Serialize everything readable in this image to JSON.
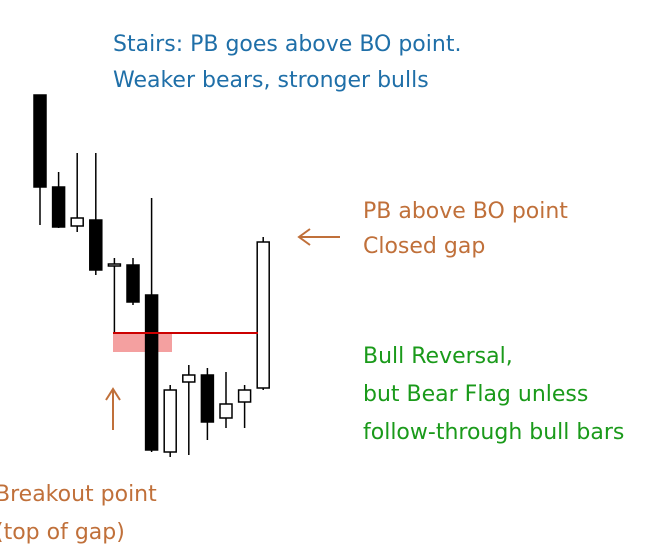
{
  "chart_data": {
    "type": "candlestick",
    "annotations": {
      "title_lines": [
        "Stairs: PB goes above BO point.",
        "Weaker bears, stronger bulls"
      ],
      "pb_lines": [
        "PB above BO point",
        "Closed gap"
      ],
      "reversal_lines": [
        "Bull Reversal,",
        "but Bear Flag unless",
        "follow-through bull bars"
      ],
      "breakout_lines": [
        "Breakout point",
        "(top of gap)"
      ]
    },
    "open": [
      461,
      369,
      330,
      336,
      290,
      291,
      261,
      104,
      174,
      181,
      138,
      154,
      168
    ],
    "high": [
      461,
      384,
      403,
      403,
      298,
      298,
      358,
      171,
      191,
      188,
      184,
      171,
      319
    ],
    "low": [
      331,
      328,
      324,
      281,
      223,
      251,
      104,
      99,
      101,
      116,
      128,
      128,
      166
    ],
    "close": [
      369,
      329,
      338,
      286,
      292,
      254,
      106,
      166,
      181,
      134,
      152,
      166,
      314
    ],
    "breakout_level": 223,
    "gap_zone": [
      204,
      223
    ],
    "ylim": [
      100,
      470
    ],
    "colors": {
      "bull": "#ffffff",
      "bear": "#000000",
      "level": "#cc0000",
      "zone": "#f08080",
      "title": "#1f6fa8",
      "pb": "#c0703a",
      "reversal": "#1a9a1a",
      "breakout": "#c0703a"
    }
  }
}
